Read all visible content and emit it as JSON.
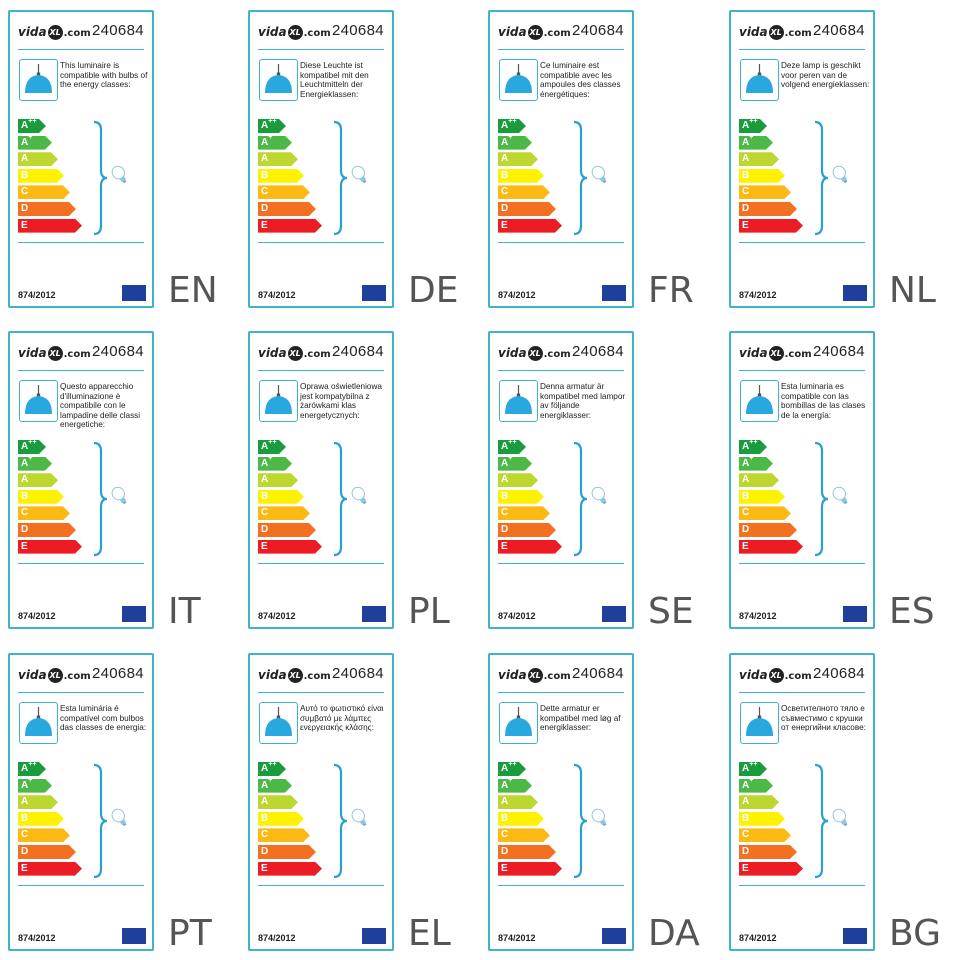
{
  "brand_prefix": "vida",
  "brand_mark": "XL",
  "brand_suffix": ".com",
  "model_number": "240684",
  "regulation": "874/2012",
  "energy_classes": [
    {
      "letter": "A",
      "sup": "++",
      "color": "#1a9c3e"
    },
    {
      "letter": "A",
      "sup": "+",
      "color": "#4cb848"
    },
    {
      "letter": "A",
      "sup": "",
      "color": "#bed630"
    },
    {
      "letter": "B",
      "sup": "",
      "color": "#fff200"
    },
    {
      "letter": "C",
      "sup": "",
      "color": "#fdb913"
    },
    {
      "letter": "D",
      "sup": "",
      "color": "#f37021"
    },
    {
      "letter": "E",
      "sup": "",
      "color": "#ed1c24"
    }
  ],
  "accent_color": "#3fb3c8",
  "lamp_color": "#29a8e0",
  "labels": [
    {
      "lang": "EN",
      "text": "This luminaire is compatible with bulbs of the energy classes:"
    },
    {
      "lang": "DE",
      "text": "Diese Leuchte ist kompatibel mit den Leuchtmitteln der Energieklassen:"
    },
    {
      "lang": "FR",
      "text": "Ce luminaire est compatible avec les ampoules des classes énergétiques:"
    },
    {
      "lang": "NL",
      "text": "Deze lamp is geschikt voor peren van de volgend energieklassen:"
    },
    {
      "lang": "IT",
      "text": "Questo apparecchio d'illuminazione è compatibile con le lampadine delle classi energetiche:"
    },
    {
      "lang": "PL",
      "text": "Oprawa oświetleniowa jest kompatybilna z żarówkami klas energetycznych:"
    },
    {
      "lang": "SE",
      "text": "Denna armatur är kompatibel med lampor av följande energiklasser:"
    },
    {
      "lang": "ES",
      "text": "Esta luminaria es compatible con las bombillas de las clases de la energía:"
    },
    {
      "lang": "PT",
      "text": "Esta luminária é compatível com bulbos das classes de energia:"
    },
    {
      "lang": "EL",
      "text": "Αυτό το φωτιστικό είναι συμβατό με λάμπες ενεργειακής κλάσης:"
    },
    {
      "lang": "DA",
      "text": "Dette armatur er kompatibel med løg af energiklasser:"
    },
    {
      "lang": "BG",
      "text": "Осветителното тяло е съвместимо с крушки от енергийни класове:"
    }
  ]
}
